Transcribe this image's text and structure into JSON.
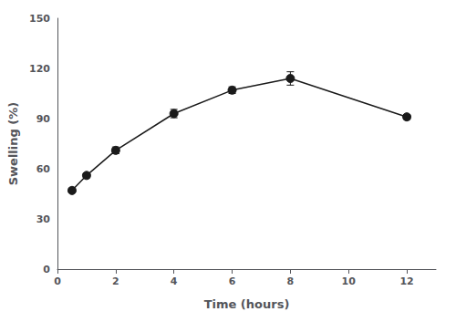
{
  "chart_data": {
    "type": "line",
    "x": [
      0.5,
      1.0,
      2.0,
      4.0,
      6.0,
      8.0,
      12.0
    ],
    "values": [
      47,
      56,
      71,
      93,
      107,
      114,
      91
    ],
    "yerr": [
      1.5,
      1.5,
      2.0,
      2.5,
      2.0,
      4.0,
      1.5
    ],
    "xlabel": "Time (hours)",
    "ylabel": "Swelling (%)",
    "xlim": [
      0,
      13
    ],
    "ylim": [
      0,
      150
    ],
    "xticks": [
      0,
      2,
      4,
      6,
      8,
      10,
      12
    ],
    "yticks": [
      0,
      30,
      60,
      90,
      120,
      150
    ],
    "color": "#1a1a1a",
    "marker": "circle",
    "grid": false
  }
}
